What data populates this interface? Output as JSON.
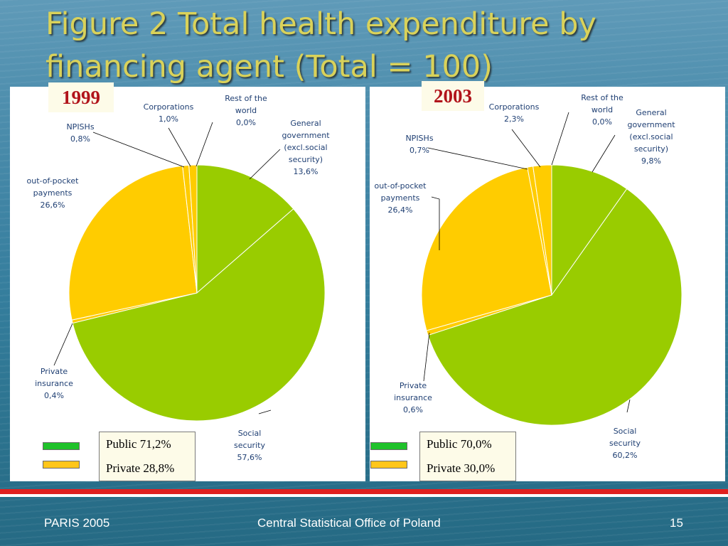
{
  "slide": {
    "title": "Figure 2 Total health expenditure by financing agent (Total = 100)",
    "footer_left": "PARIS 2005",
    "footer_center": "Central Statistical Office of Poland",
    "page_number": "15"
  },
  "colors": {
    "general_government": "#99cc00",
    "social_security": "#99cc00",
    "out_of_pocket": "#ffcc00",
    "private_small": "#ffcc00",
    "public_legend": "#1fc22a",
    "private_legend": "#ffc61a",
    "red_stripe": "#e0201f",
    "title": "#d9d25a",
    "label_text": "#1f3f73"
  },
  "chart_data": [
    {
      "type": "pie",
      "year": "1999",
      "slices": [
        {
          "label": [
            "General",
            "government",
            "(excl.social",
            "security)",
            "13,6%"
          ],
          "value": 13.6
        },
        {
          "label": [
            "Social",
            "security",
            "57,6%"
          ],
          "value": 57.6
        },
        {
          "label": [
            "Private",
            "insurance",
            "0,4%"
          ],
          "value": 0.4
        },
        {
          "label": [
            "out-of-pocket",
            "payments",
            "26,6%"
          ],
          "value": 26.6
        },
        {
          "label": [
            "NPISHs",
            "0,8%"
          ],
          "value": 0.8
        },
        {
          "label": [
            "Corporations",
            "1,0%"
          ],
          "value": 1.0
        },
        {
          "label": [
            "Rest of the",
            "world",
            "0,0%"
          ],
          "value": 0.0
        }
      ],
      "legend": {
        "public": "Public 71,2%",
        "private": "Private 28,8%"
      }
    },
    {
      "type": "pie",
      "year": "2003",
      "slices": [
        {
          "label": [
            "General",
            "government",
            "(excl.social",
            "security)",
            "9,8%"
          ],
          "value": 9.8
        },
        {
          "label": [
            "Social",
            "security",
            "60,2%"
          ],
          "value": 60.2
        },
        {
          "label": [
            "Private",
            "insurance",
            "0,6%"
          ],
          "value": 0.6
        },
        {
          "label": [
            "out-of-pocket",
            "payments",
            "26,4%"
          ],
          "value": 26.4
        },
        {
          "label": [
            "NPISHs",
            "0,7%"
          ],
          "value": 0.7
        },
        {
          "label": [
            "Corporations",
            "2,3%"
          ],
          "value": 2.3
        },
        {
          "label": [
            "Rest of the",
            "world",
            "0,0%"
          ],
          "value": 0.0
        }
      ],
      "legend": {
        "public": "Public  70,0%",
        "private": "Private 30,0%"
      }
    }
  ]
}
